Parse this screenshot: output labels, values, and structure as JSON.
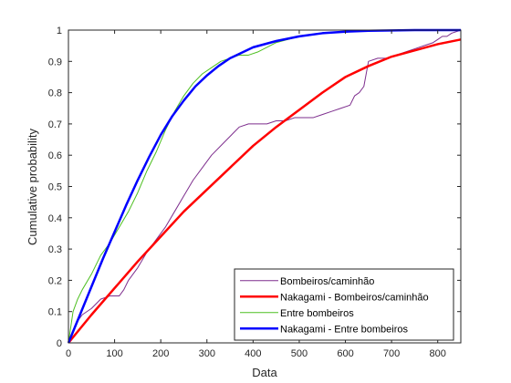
{
  "chart_data": {
    "type": "line",
    "title": "",
    "xlabel": "Data",
    "ylabel": "Cumulative probability",
    "xlim": [
      0,
      850
    ],
    "ylim": [
      0,
      1
    ],
    "x_ticks": [
      0,
      100,
      200,
      300,
      400,
      500,
      600,
      700,
      800
    ],
    "y_ticks": [
      0,
      0.1,
      0.2,
      0.3,
      0.4,
      0.5,
      0.6,
      0.7,
      0.8,
      0.9,
      1
    ],
    "y_tick_labels": [
      "0",
      "0.1",
      "0.2",
      "0.3",
      "0.4",
      "0.5",
      "0.6",
      "0.7",
      "0.8",
      "0.9",
      "1"
    ],
    "grid": false,
    "box": true,
    "legend_position": "bottom-right",
    "series": [
      {
        "name": "Bombeiros/caminhão",
        "color": "#7e2f8e",
        "width": 1,
        "x": [
          0,
          5,
          10,
          20,
          30,
          50,
          70,
          90,
          110,
          120,
          130,
          150,
          170,
          190,
          210,
          230,
          250,
          270,
          290,
          310,
          330,
          350,
          370,
          390,
          410,
          430,
          450,
          470,
          490,
          510,
          530,
          550,
          570,
          590,
          610,
          620,
          630,
          640,
          650,
          670,
          690,
          710,
          730,
          750,
          770,
          790,
          800,
          810,
          820,
          830,
          850
        ],
        "y": [
          0,
          0.02,
          0.04,
          0.07,
          0.09,
          0.11,
          0.14,
          0.15,
          0.15,
          0.17,
          0.2,
          0.24,
          0.29,
          0.33,
          0.37,
          0.42,
          0.47,
          0.52,
          0.56,
          0.6,
          0.63,
          0.66,
          0.69,
          0.7,
          0.7,
          0.7,
          0.71,
          0.71,
          0.72,
          0.72,
          0.72,
          0.73,
          0.74,
          0.75,
          0.76,
          0.79,
          0.8,
          0.82,
          0.9,
          0.91,
          0.91,
          0.92,
          0.93,
          0.94,
          0.95,
          0.96,
          0.97,
          0.98,
          0.98,
          0.99,
          1.0
        ]
      },
      {
        "name": "Nakagami - Bombeiros/caminhão",
        "color": "#ff0000",
        "width": 2.5,
        "x": [
          0,
          50,
          100,
          150,
          200,
          250,
          300,
          350,
          400,
          450,
          500,
          550,
          600,
          650,
          700,
          750,
          800,
          850
        ],
        "y": [
          0,
          0.09,
          0.175,
          0.26,
          0.34,
          0.42,
          0.49,
          0.56,
          0.63,
          0.69,
          0.745,
          0.8,
          0.85,
          0.885,
          0.915,
          0.935,
          0.955,
          0.97
        ]
      },
      {
        "name": "Entre bombeiros",
        "color": "#4dbf20",
        "width": 1,
        "x": [
          0,
          5,
          10,
          20,
          30,
          50,
          70,
          90,
          110,
          130,
          150,
          170,
          190,
          210,
          230,
          250,
          270,
          290,
          310,
          330,
          350,
          370,
          390,
          410,
          450,
          500,
          550,
          600,
          700,
          800,
          850
        ],
        "y": [
          0,
          0.05,
          0.1,
          0.14,
          0.17,
          0.22,
          0.28,
          0.32,
          0.37,
          0.42,
          0.48,
          0.55,
          0.61,
          0.68,
          0.74,
          0.79,
          0.83,
          0.86,
          0.88,
          0.9,
          0.91,
          0.92,
          0.92,
          0.93,
          0.96,
          0.98,
          0.99,
          0.995,
          0.999,
          1.0,
          1.0
        ]
      },
      {
        "name": "Nakagami - Entre bombeiros",
        "color": "#0000ff",
        "width": 2.5,
        "x": [
          0,
          25,
          50,
          75,
          100,
          125,
          150,
          175,
          200,
          225,
          250,
          275,
          300,
          325,
          350,
          400,
          450,
          500,
          550,
          600,
          650,
          700,
          750,
          800,
          850
        ],
        "y": [
          0,
          0.09,
          0.18,
          0.27,
          0.355,
          0.44,
          0.52,
          0.595,
          0.665,
          0.725,
          0.775,
          0.82,
          0.855,
          0.885,
          0.91,
          0.945,
          0.965,
          0.98,
          0.99,
          0.995,
          0.998,
          0.999,
          1.0,
          1.0,
          1.0
        ]
      }
    ]
  }
}
